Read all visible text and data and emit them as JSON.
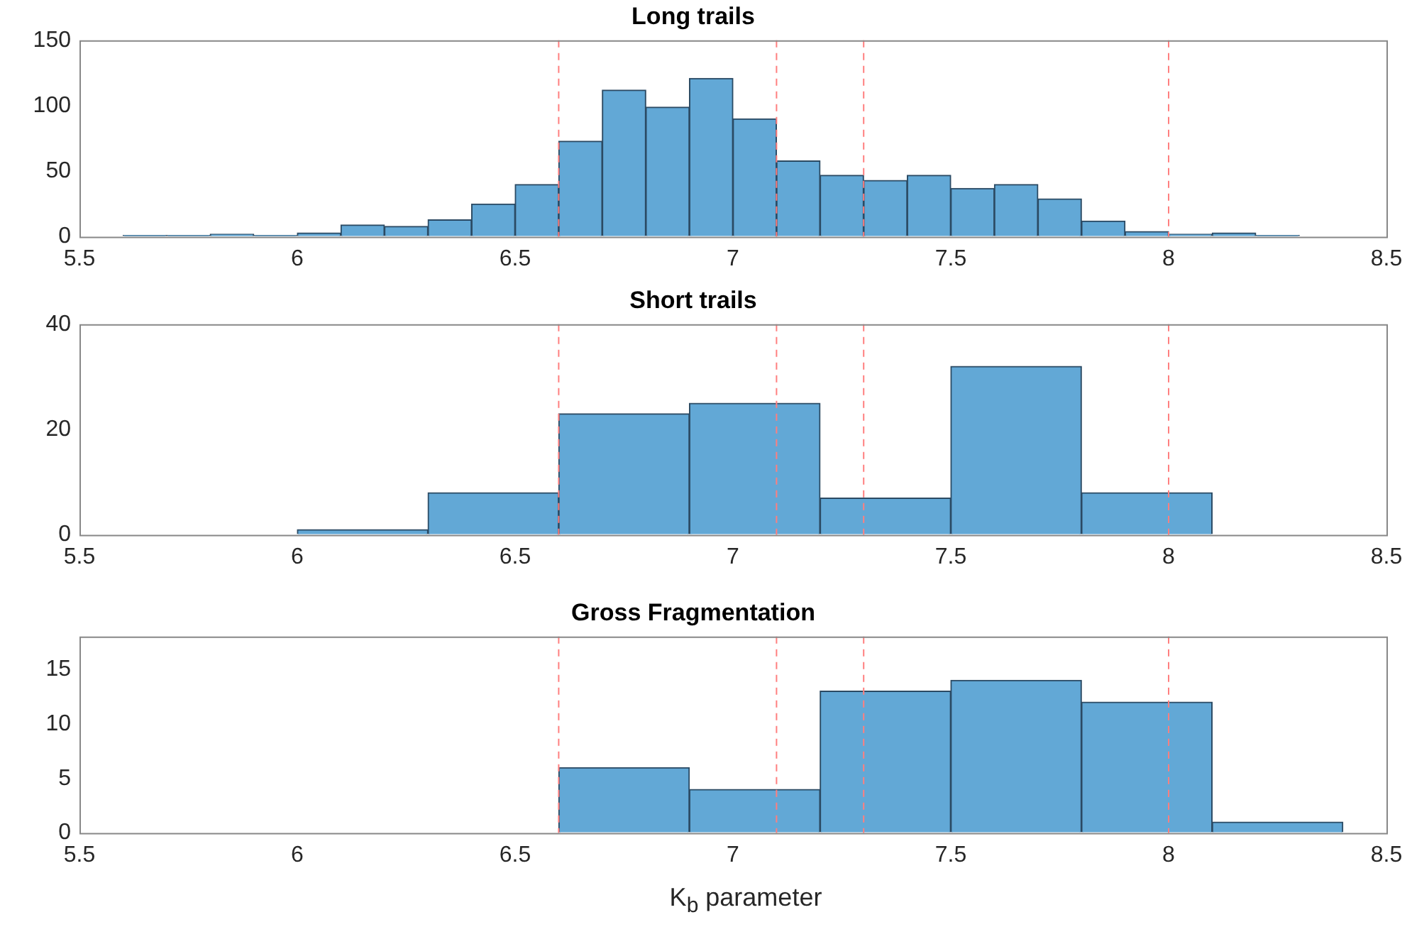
{
  "chart_data": [
    {
      "type": "histogram",
      "title": "Long trails",
      "color": "#62a8d6",
      "bins": [
        5.6,
        5.7,
        5.8,
        5.9,
        6.0,
        6.1,
        6.2,
        6.3,
        6.4,
        6.5,
        6.6,
        6.7,
        6.8,
        6.9,
        7.0,
        7.1,
        7.2,
        7.3,
        7.4,
        7.5,
        7.6,
        7.7,
        7.8,
        7.9,
        8.0,
        8.1,
        8.2,
        8.3
      ],
      "values": [
        1,
        1,
        2,
        1,
        3,
        9,
        8,
        13,
        25,
        40,
        73,
        112,
        99,
        121,
        90,
        58,
        47,
        43,
        47,
        37,
        40,
        29,
        12,
        4,
        2,
        3,
        1
      ],
      "xlim": [
        5.5,
        8.5
      ],
      "xticks": [
        5.5,
        6,
        6.5,
        7,
        7.5,
        8,
        8.5
      ],
      "ylim": [
        0,
        150
      ],
      "yticks": [
        0,
        50,
        100,
        150
      ],
      "grid": false,
      "legend": false,
      "ref_lines": [
        {
          "axis": "x",
          "value": 6.6,
          "color": "#ff7f7f",
          "line_style": "dashed"
        },
        {
          "axis": "x",
          "value": 7.1,
          "color": "#ff7f7f",
          "line_style": "dashed"
        },
        {
          "axis": "x",
          "value": 7.3,
          "color": "#ff7f7f",
          "line_style": "dashed"
        },
        {
          "axis": "x",
          "value": 8.0,
          "color": "#ff7f7f",
          "line_style": "dashed"
        }
      ]
    },
    {
      "type": "histogram",
      "title": "Short trails",
      "color": "#62a8d6",
      "bins": [
        6.0,
        6.3,
        6.6,
        6.9,
        7.2,
        7.5,
        7.8,
        8.1
      ],
      "values": [
        1,
        8,
        23,
        25,
        7,
        32,
        8
      ],
      "xlim": [
        5.5,
        8.5
      ],
      "xticks": [
        5.5,
        6,
        6.5,
        7,
        7.5,
        8,
        8.5
      ],
      "ylim": [
        0,
        40
      ],
      "yticks": [
        0,
        20,
        40
      ],
      "grid": false,
      "legend": false,
      "ref_lines": [
        {
          "axis": "x",
          "value": 6.6,
          "color": "#ff7f7f",
          "line_style": "dashed"
        },
        {
          "axis": "x",
          "value": 7.1,
          "color": "#ff7f7f",
          "line_style": "dashed"
        },
        {
          "axis": "x",
          "value": 7.3,
          "color": "#ff7f7f",
          "line_style": "dashed"
        },
        {
          "axis": "x",
          "value": 8.0,
          "color": "#ff7f7f",
          "line_style": "dashed"
        }
      ]
    },
    {
      "type": "histogram",
      "title": "Gross Fragmentation",
      "xlabel": "K$_{b}$ parameter",
      "color": "#62a8d6",
      "bins": [
        6.6,
        6.9,
        7.2,
        7.5,
        7.8,
        8.1,
        8.4
      ],
      "values": [
        6,
        4,
        13,
        14,
        12,
        1
      ],
      "xlim": [
        5.5,
        8.5
      ],
      "xticks": [
        5.5,
        6,
        6.5,
        7,
        7.5,
        8,
        8.5
      ],
      "ylim": [
        0,
        18
      ],
      "yticks": [
        0,
        5,
        10,
        15
      ],
      "grid": false,
      "legend": false,
      "ref_lines": [
        {
          "axis": "x",
          "value": 6.6,
          "color": "#ff7f7f",
          "line_style": "dashed"
        },
        {
          "axis": "x",
          "value": 7.1,
          "color": "#ff7f7f",
          "line_style": "dashed"
        },
        {
          "axis": "x",
          "value": 7.3,
          "color": "#ff7f7f",
          "line_style": "dashed"
        },
        {
          "axis": "x",
          "value": 8.0,
          "color": "#ff7f7f",
          "line_style": "dashed"
        }
      ]
    }
  ]
}
